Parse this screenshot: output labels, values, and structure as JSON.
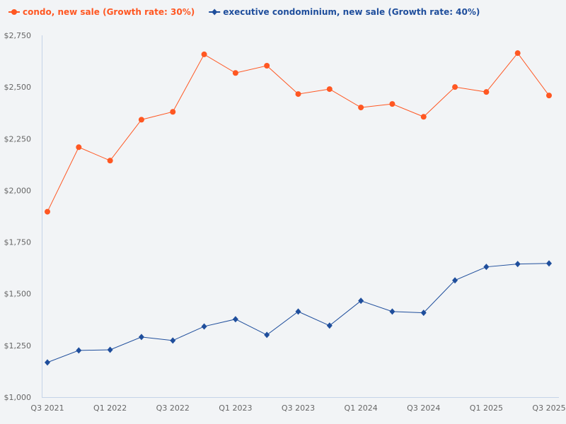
{
  "chart_data": {
    "type": "line",
    "title": "",
    "xlabel": "",
    "ylabel": "",
    "categories": [
      "Q3 2021",
      "Q4 2021",
      "Q1 2022",
      "Q2 2022",
      "Q3 2022",
      "Q4 2022",
      "Q1 2023",
      "Q2 2023",
      "Q3 2023",
      "Q4 2023",
      "Q1 2024",
      "Q2 2024",
      "Q3 2024",
      "Q4 2024",
      "Q1 2025",
      "Q2 2025",
      "Q3 2025"
    ],
    "x_tick_labels": [
      "Q3 2021",
      "Q1 2022",
      "Q3 2022",
      "Q1 2023",
      "Q3 2023",
      "Q1 2024",
      "Q3 2024",
      "Q1 2025",
      "Q3 2025"
    ],
    "ylim": [
      1000,
      2750
    ],
    "y_ticks": [
      1000,
      1250,
      1500,
      1750,
      2000,
      2250,
      2500,
      2750
    ],
    "y_tick_labels": [
      "$1,000",
      "$1,250",
      "$1,500",
      "$1,750",
      "$2,000",
      "$2,250",
      "$2,500",
      "$2,750"
    ],
    "grid": false,
    "legend_position": "top-left",
    "series": [
      {
        "name": "condo, new sale (Growth rate: 30%)",
        "color": "#ff5722",
        "marker": "circle",
        "values": [
          1897,
          2209,
          2144,
          2342,
          2380,
          2658,
          2568,
          2603,
          2466,
          2490,
          2401,
          2418,
          2356,
          2500,
          2476,
          2664,
          2459
        ]
      },
      {
        "name": "executive condominium, new sale (Growth rate: 40%)",
        "color": "#1f4e9c",
        "marker": "diamond",
        "values": [
          1168,
          1226,
          1229,
          1291,
          1274,
          1342,
          1377,
          1301,
          1414,
          1346,
          1466,
          1414,
          1408,
          1565,
          1630,
          1644,
          1647
        ]
      }
    ]
  }
}
